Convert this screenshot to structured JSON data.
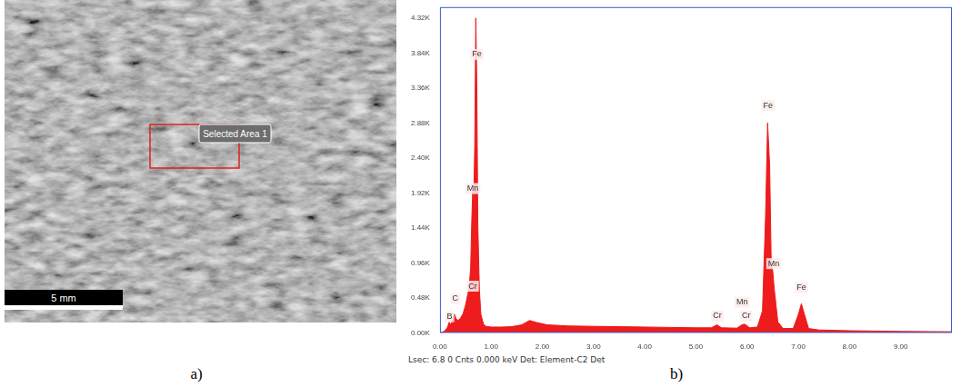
{
  "panel_labels": [
    "a)",
    "b)"
  ],
  "micrograph": {
    "selection_label": "Selected Area 1",
    "scale_bar": "5 mm"
  },
  "status_line": "Lsec: 6.8 0 Cnts 0.000 keV Det: Element-C2 Det",
  "chart_data": {
    "type": "area",
    "color": "#ee1c1c",
    "grid": false,
    "x": [
      0.0,
      0.05,
      0.1,
      0.15,
      0.18,
      0.21,
      0.25,
      0.28,
      0.31,
      0.35,
      0.4,
      0.45,
      0.5,
      0.54,
      0.57,
      0.6,
      0.62,
      0.64,
      0.66,
      0.68,
      0.7,
      0.72,
      0.74,
      0.77,
      0.8,
      0.85,
      0.9,
      1.0,
      1.2,
      1.4,
      1.6,
      1.75,
      1.9,
      2.1,
      2.5,
      3.0,
      3.5,
      4.0,
      4.5,
      5.0,
      5.3,
      5.41,
      5.5,
      5.8,
      5.9,
      5.95,
      6.05,
      6.2,
      6.3,
      6.36,
      6.4,
      6.44,
      6.47,
      6.5,
      6.53,
      6.6,
      6.7,
      6.9,
      7.0,
      7.06,
      7.1,
      7.2,
      7.4,
      8.0,
      9.0,
      10.0
    ],
    "values": [
      0,
      10,
      30,
      80,
      150,
      110,
      180,
      260,
      200,
      170,
      200,
      260,
      380,
      520,
      620,
      900,
      1500,
      1950,
      1800,
      2600,
      4320,
      3400,
      1500,
      600,
      250,
      120,
      90,
      80,
      80,
      85,
      110,
      170,
      140,
      110,
      95,
      90,
      85,
      80,
      75,
      70,
      70,
      110,
      70,
      65,
      110,
      120,
      70,
      80,
      300,
      1600,
      2880,
      2300,
      1000,
      850,
      600,
      150,
      60,
      60,
      250,
      400,
      300,
      60,
      40,
      30,
      20,
      15
    ],
    "xlim": [
      0,
      10
    ],
    "ylim": [
      0,
      4470
    ],
    "xticks": [
      {
        "value": 0,
        "label": "0.00"
      },
      {
        "value": 1,
        "label": "1.00"
      },
      {
        "value": 2,
        "label": "2.00"
      },
      {
        "value": 3,
        "label": "3.00"
      },
      {
        "value": 4,
        "label": "4.00"
      },
      {
        "value": 5,
        "label": "5.00"
      },
      {
        "value": 6,
        "label": "6.00"
      },
      {
        "value": 7,
        "label": "7.00"
      },
      {
        "value": 8,
        "label": "8.00"
      },
      {
        "value": 9,
        "label": "9.00"
      }
    ],
    "yticks": [
      {
        "value": 0,
        "label": "0.00K"
      },
      {
        "value": 480,
        "label": "0.48K"
      },
      {
        "value": 960,
        "label": "0.96K"
      },
      {
        "value": 1440,
        "label": "1.44K"
      },
      {
        "value": 1920,
        "label": "1.92K"
      },
      {
        "value": 2400,
        "label": "2.40K"
      },
      {
        "value": 2880,
        "label": "2.88K"
      },
      {
        "value": 3360,
        "label": "3.36K"
      },
      {
        "value": 3840,
        "label": "3.84K"
      },
      {
        "value": 4320,
        "label": "4.32K"
      }
    ],
    "annotations": [
      {
        "text": "Fe",
        "x": 0.72,
        "y": 3820
      },
      {
        "text": "Mn",
        "x": 0.64,
        "y": 1980
      },
      {
        "text": "Cr",
        "x": 0.64,
        "y": 640
      },
      {
        "text": "C",
        "x": 0.3,
        "y": 470
      },
      {
        "text": "B",
        "x": 0.19,
        "y": 220
      },
      {
        "text": "Cr",
        "x": 5.42,
        "y": 230
      },
      {
        "text": "Mn",
        "x": 5.9,
        "y": 420
      },
      {
        "text": "Cr",
        "x": 5.98,
        "y": 230
      },
      {
        "text": "Fe",
        "x": 6.41,
        "y": 3120
      },
      {
        "text": "Mn",
        "x": 6.52,
        "y": 950
      },
      {
        "text": "Fe",
        "x": 7.06,
        "y": 620
      }
    ]
  }
}
